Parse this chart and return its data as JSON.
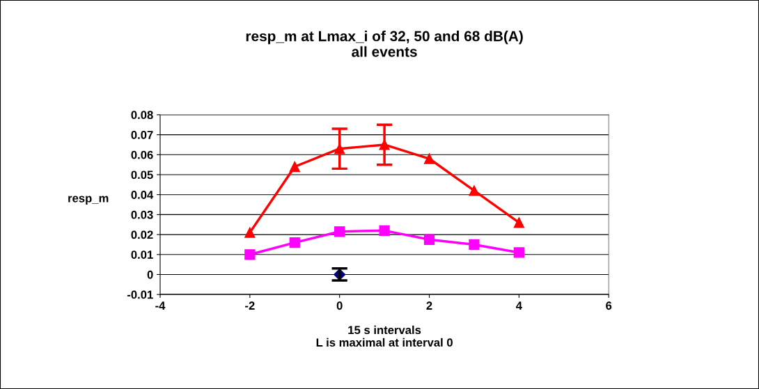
{
  "chart_data": {
    "type": "line",
    "title": "resp_m at Lmax_i of 32, 50 and 68 dB(A)\nall events",
    "xlabel": "15 s intervals\nL is maximal at interval 0",
    "ylabel": "resp_m",
    "xlim": [
      -4,
      6
    ],
    "xticks": [
      -4,
      -2,
      0,
      2,
      4,
      6
    ],
    "ylim": [
      -0.01,
      0.08
    ],
    "yticks": [
      -0.01,
      0,
      0.01,
      0.02,
      0.03,
      0.04,
      0.05,
      0.06,
      0.07,
      0.08
    ],
    "grid": "y",
    "line_style": "solid",
    "series": [
      {
        "color": "#ff0000",
        "marker": "triangle",
        "x": [
          -2,
          -1,
          0,
          1,
          2,
          3,
          4
        ],
        "values": [
          0.021,
          0.054,
          0.063,
          0.065,
          0.058,
          0.042,
          0.026
        ],
        "errors": [
          null,
          null,
          0.01,
          0.01,
          null,
          null,
          null
        ]
      },
      {
        "color": "#ff00ff",
        "marker": "square",
        "x": [
          -2,
          -1,
          0,
          1,
          2,
          3,
          4
        ],
        "values": [
          0.01,
          0.016,
          0.0215,
          0.022,
          0.0175,
          0.015,
          0.011
        ]
      },
      {
        "type": "scatter",
        "color": "#000080",
        "marker": "diamond",
        "x": [
          0
        ],
        "values": [
          0
        ],
        "errors": [
          0.003
        ]
      }
    ]
  }
}
